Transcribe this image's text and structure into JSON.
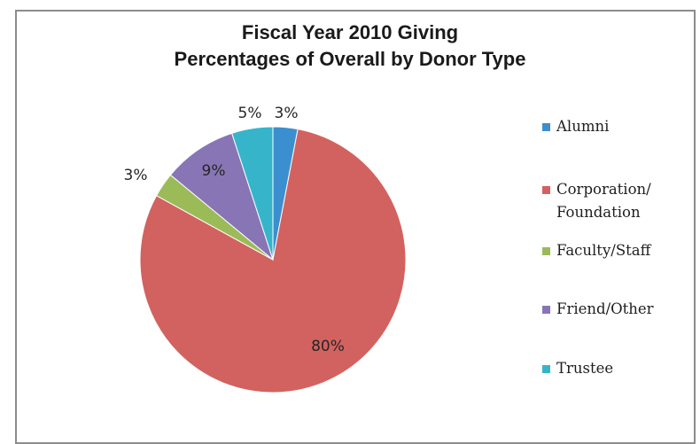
{
  "chart_data": {
    "type": "pie",
    "title": [
      "Fiscal Year 2010 Giving",
      "Percentages of Overall by Donor Type"
    ],
    "slices": [
      {
        "name": "Alumni",
        "value": 3,
        "label": "3%",
        "color": "#3c8fcf"
      },
      {
        "name": "Corporation/\nFoundation",
        "value": 80,
        "label": "80%",
        "color": "#d2625f"
      },
      {
        "name": "Faculty/Staff",
        "value": 3,
        "label": "3%",
        "color": "#9bbb59"
      },
      {
        "name": "Friend/Other",
        "value": 9,
        "label": "9%",
        "color": "#8875b6"
      },
      {
        "name": "Trustee",
        "value": 5,
        "label": "5%",
        "color": "#36b5ca"
      }
    ],
    "legend_position": "right",
    "start_angle": "12 o'clock, clockwise"
  }
}
